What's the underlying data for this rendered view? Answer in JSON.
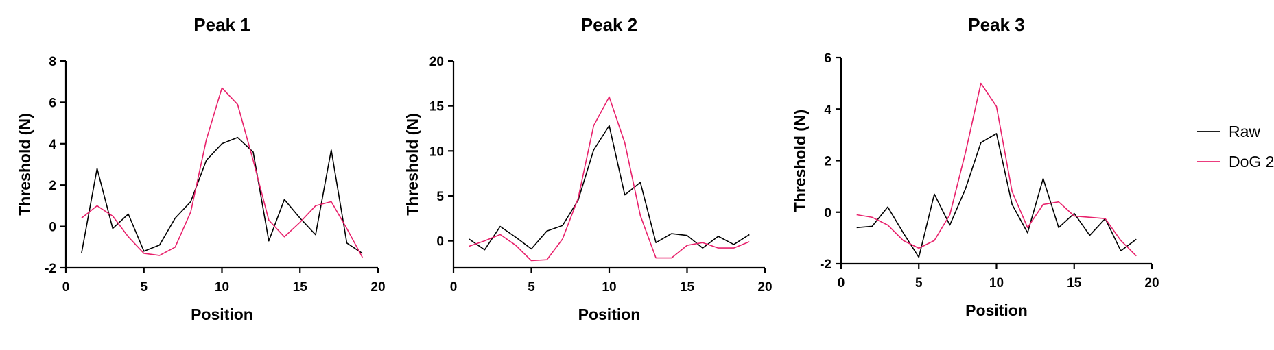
{
  "chart_data": [
    {
      "type": "line",
      "title": "Peak 1",
      "xlabel": "Position",
      "ylabel": "Threshold (N)",
      "xlim": [
        0,
        20
      ],
      "ylim": [
        -2,
        8
      ],
      "xticks": [
        0,
        5,
        10,
        15,
        20
      ],
      "yticks": [
        -2,
        0,
        2,
        4,
        6,
        8
      ],
      "x": [
        1,
        2,
        3,
        4,
        5,
        6,
        7,
        8,
        9,
        10,
        11,
        12,
        13,
        14,
        15,
        16,
        17,
        18,
        19
      ],
      "series": [
        {
          "name": "Raw",
          "values": [
            -1.3,
            2.8,
            -0.1,
            0.6,
            -1.2,
            -0.9,
            0.4,
            1.2,
            3.2,
            4.0,
            4.3,
            3.6,
            -0.7,
            1.3,
            0.4,
            -0.4,
            3.7,
            -0.8,
            -1.3
          ]
        },
        {
          "name": "DoG 2.0",
          "values": [
            0.4,
            1.0,
            0.5,
            -0.5,
            -1.3,
            -1.4,
            -1.0,
            0.7,
            4.2,
            6.7,
            5.9,
            3.2,
            0.3,
            -0.5,
            0.2,
            1.0,
            1.2,
            -0.1,
            -1.5
          ]
        }
      ]
    },
    {
      "type": "line",
      "title": "Peak 2",
      "xlabel": "Position",
      "ylabel": "Threshold (N)",
      "xlim": [
        0,
        20
      ],
      "ylim": [
        -3,
        20
      ],
      "xticks": [
        0,
        5,
        10,
        15,
        20
      ],
      "yticks": [
        0,
        5,
        10,
        15,
        20
      ],
      "x": [
        1,
        2,
        3,
        4,
        5,
        6,
        7,
        8,
        9,
        10,
        11,
        12,
        13,
        14,
        15,
        16,
        17,
        18,
        19
      ],
      "series": [
        {
          "name": "Raw",
          "values": [
            0.2,
            -1.0,
            1.6,
            0.4,
            -0.9,
            1.1,
            1.7,
            4.5,
            10.1,
            12.8,
            5.1,
            6.5,
            -0.2,
            0.8,
            0.6,
            -0.8,
            0.5,
            -0.4,
            0.7
          ]
        },
        {
          "name": "DoG 2.0",
          "values": [
            -0.6,
            0.0,
            0.7,
            -0.5,
            -2.2,
            -2.1,
            0.2,
            4.7,
            12.8,
            16.0,
            10.9,
            2.8,
            -1.9,
            -1.9,
            -0.5,
            -0.2,
            -0.8,
            -0.8,
            -0.1
          ]
        }
      ]
    },
    {
      "type": "line",
      "title": "Peak 3",
      "xlabel": "Position",
      "ylabel": "Threshold (N)",
      "xlim": [
        0,
        20
      ],
      "ylim": [
        -2,
        6
      ],
      "xticks": [
        0,
        5,
        10,
        15,
        20
      ],
      "yticks": [
        -2,
        0,
        2,
        4,
        6
      ],
      "x": [
        1,
        2,
        3,
        4,
        5,
        6,
        7,
        8,
        9,
        10,
        11,
        12,
        13,
        14,
        15,
        16,
        17,
        18,
        19
      ],
      "series": [
        {
          "name": "Raw",
          "values": [
            -0.6,
            -0.55,
            0.2,
            -0.8,
            -1.75,
            0.7,
            -0.5,
            0.9,
            2.7,
            3.05,
            0.3,
            -0.8,
            1.3,
            -0.6,
            -0.05,
            -0.9,
            -0.25,
            -1.5,
            -1.05
          ]
        },
        {
          "name": "DoG 2.0",
          "values": [
            -0.1,
            -0.2,
            -0.5,
            -1.1,
            -1.4,
            -1.1,
            -0.1,
            2.3,
            5.0,
            4.1,
            0.8,
            -0.6,
            0.3,
            0.4,
            -0.15,
            -0.2,
            -0.25,
            -1.1,
            -1.7
          ]
        }
      ]
    }
  ],
  "legend": {
    "placement": "right",
    "items": [
      {
        "label": "Raw",
        "color": "#000000"
      },
      {
        "label": "DoG 2.0",
        "color": "#e8216b"
      }
    ]
  },
  "colors": {
    "Raw": "#000000",
    "DoG 2.0": "#e8216b"
  }
}
